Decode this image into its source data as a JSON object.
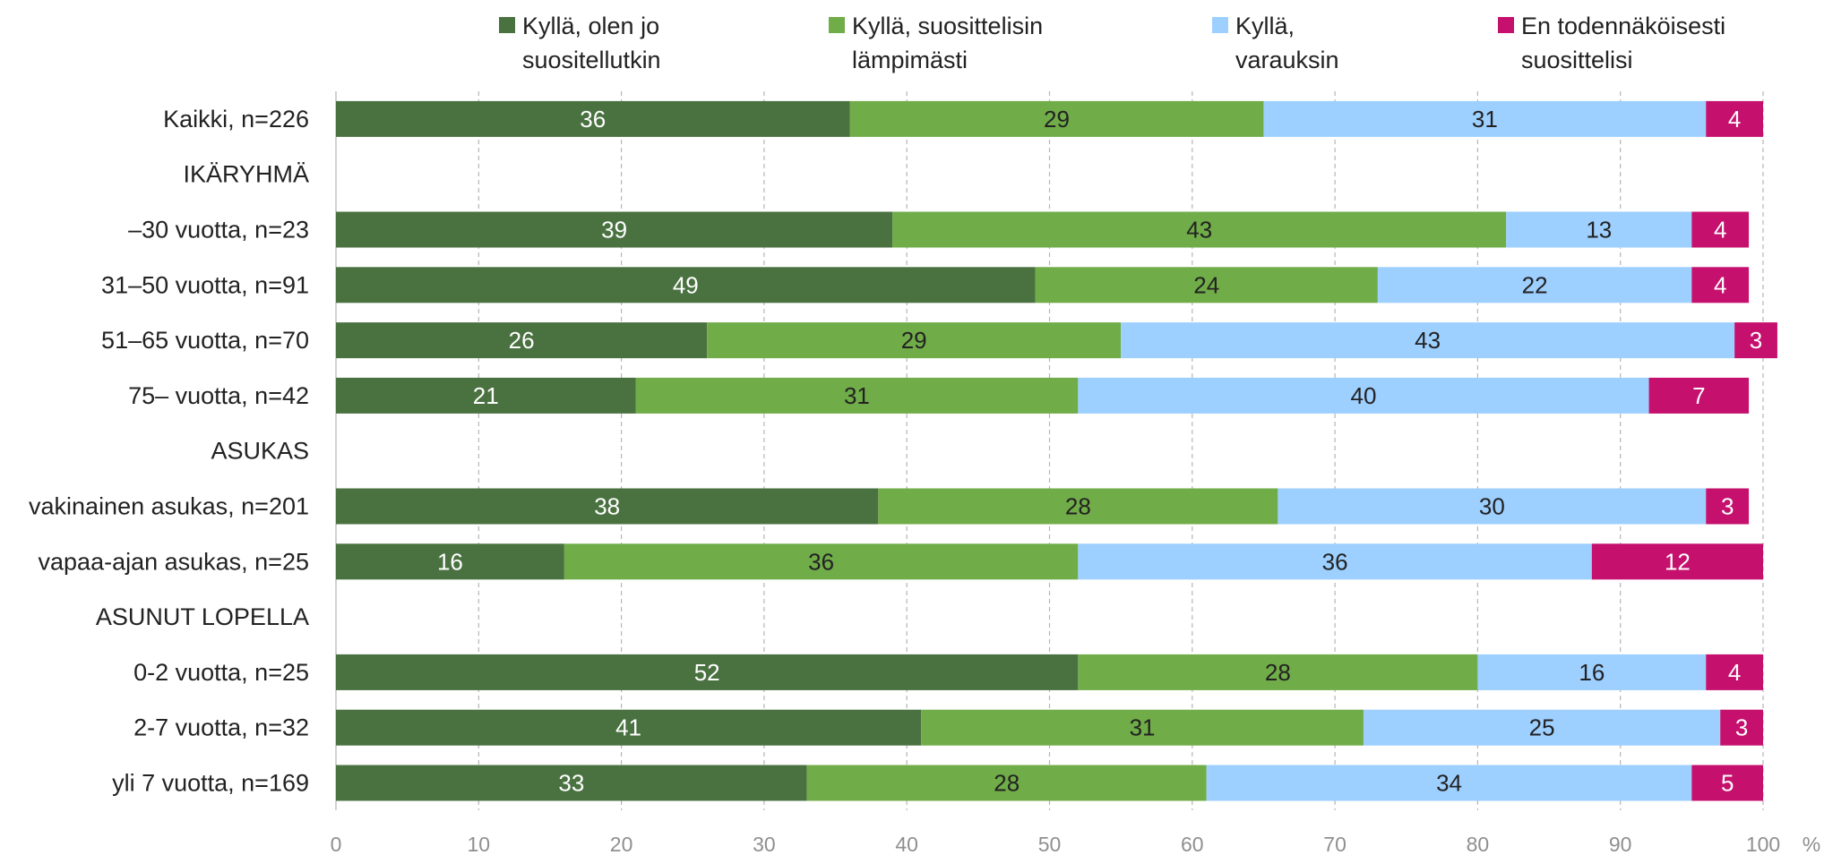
{
  "chart_data": {
    "type": "bar",
    "orientation": "horizontal",
    "stacked": true,
    "xlim": [
      0,
      100
    ],
    "x_ticks": [
      "0",
      "10",
      "20",
      "30",
      "40",
      "50",
      "60",
      "70",
      "80",
      "90",
      "100"
    ],
    "x_unit": "%",
    "grid": "vertical dashed",
    "legend_position": "top",
    "colors": [
      "#4a7240",
      "#70ac48",
      "#9dcfff",
      "#c5106e"
    ],
    "series": [
      {
        "name": "Kyllä, olen jo\nsuositellutkin"
      },
      {
        "name": "Kyllä, suosittelisin\nlämpimästi"
      },
      {
        "name": "Kyllä,\nvarauksin"
      },
      {
        "name": "En todennäköisesti\nsuosittelisi"
      }
    ],
    "rows": [
      {
        "label": "Kaikki, n=226",
        "values": [
          36,
          29,
          31,
          4
        ]
      },
      {
        "label": "IKÄRYHMÄ",
        "header": true
      },
      {
        "label": "–30 vuotta, n=23",
        "values": [
          39,
          43,
          13,
          4
        ]
      },
      {
        "label": "31–50 vuotta, n=91",
        "values": [
          49,
          24,
          22,
          4
        ]
      },
      {
        "label": "51–65 vuotta, n=70",
        "values": [
          26,
          29,
          43,
          3
        ]
      },
      {
        "label": "75– vuotta, n=42",
        "values": [
          21,
          31,
          40,
          7
        ]
      },
      {
        "label": "ASUKAS",
        "header": true
      },
      {
        "label": "vakinainen asukas, n=201",
        "values": [
          38,
          28,
          30,
          3
        ]
      },
      {
        "label": "vapaa-ajan asukas, n=25",
        "values": [
          16,
          36,
          36,
          12
        ]
      },
      {
        "label": "ASUNUT LOPELLA",
        "header": true
      },
      {
        "label": "0-2 vuotta, n=25",
        "values": [
          52,
          28,
          16,
          4
        ]
      },
      {
        "label": "2-7 vuotta, n=32",
        "values": [
          41,
          31,
          25,
          3
        ]
      },
      {
        "label": "yli 7 vuotta, n=169",
        "values": [
          33,
          28,
          34,
          5
        ]
      }
    ]
  }
}
